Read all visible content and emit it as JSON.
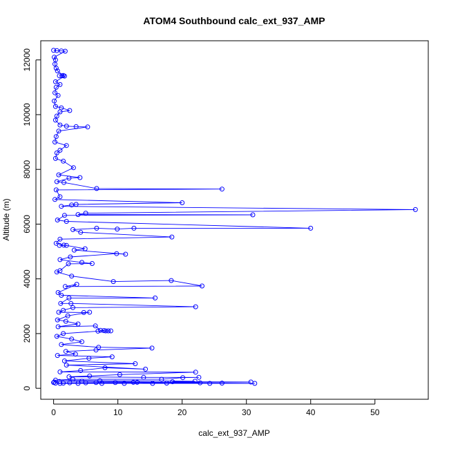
{
  "chart_data": {
    "type": "line",
    "title": "ATOM4 Southbound calc_ext_937_AMP",
    "xlabel": "calc_ext_937_AMP",
    "ylabel": "Altitude (m)",
    "xlim": [
      -2,
      58.3
    ],
    "ylim": [
      -400,
      12700
    ],
    "x_ticks": [
      0,
      10,
      20,
      30,
      40,
      50
    ],
    "y_ticks": [
      0,
      2000,
      4000,
      6000,
      8000,
      10000,
      12000
    ],
    "x_tick_labels": [
      "0",
      "10",
      "20",
      "30",
      "40",
      "50"
    ],
    "y_tick_labels": [
      "0",
      "2000",
      "4000",
      "6000",
      "8000",
      "10000",
      "12000"
    ],
    "grid": false,
    "legend": "none",
    "series_color": "#0000ff",
    "marker": "open-circle",
    "series": [
      {
        "points": [
          [
            0.0,
            12350
          ],
          [
            0.5,
            12340
          ],
          [
            1.2,
            12330
          ],
          [
            1.8,
            12320
          ],
          [
            0.1,
            12100
          ],
          [
            0.3,
            12000
          ],
          [
            0.2,
            11850
          ],
          [
            0.4,
            11700
          ],
          [
            0.6,
            11600
          ],
          [
            1.5,
            11430
          ],
          [
            0.9,
            11420
          ],
          [
            1.3,
            11420
          ],
          [
            1.7,
            11410
          ],
          [
            0.3,
            11200
          ],
          [
            1.0,
            11100
          ],
          [
            0.4,
            11000
          ],
          [
            0.2,
            10800
          ],
          [
            0.7,
            10700
          ],
          [
            0.1,
            10500
          ],
          [
            0.3,
            10300
          ],
          [
            1.2,
            10250
          ],
          [
            2.5,
            10150
          ],
          [
            1.0,
            10100
          ],
          [
            0.5,
            9950
          ],
          [
            0.3,
            9800
          ],
          [
            1.0,
            9620
          ],
          [
            2.0,
            9580
          ],
          [
            3.5,
            9560
          ],
          [
            5.3,
            9550
          ],
          [
            0.8,
            9400
          ],
          [
            0.4,
            9200
          ],
          [
            0.2,
            9000
          ],
          [
            2.0,
            8870
          ],
          [
            1.0,
            8700
          ],
          [
            0.5,
            8600
          ],
          [
            0.3,
            8400
          ],
          [
            1.5,
            8300
          ],
          [
            3.1,
            8060
          ],
          [
            0.8,
            7800
          ],
          [
            4.1,
            7700
          ],
          [
            2.4,
            7680
          ],
          [
            0.5,
            7550
          ],
          [
            1.6,
            7520
          ],
          [
            6.7,
            7300
          ],
          [
            26.2,
            7280
          ],
          [
            0.4,
            7250
          ],
          [
            1.0,
            7000
          ],
          [
            0.2,
            6900
          ],
          [
            20.0,
            6780
          ],
          [
            3.5,
            6720
          ],
          [
            2.8,
            6700
          ],
          [
            1.2,
            6650
          ],
          [
            56.3,
            6530
          ],
          [
            5.0,
            6400
          ],
          [
            3.8,
            6350
          ],
          [
            31.0,
            6340
          ],
          [
            1.7,
            6320
          ],
          [
            0.6,
            6150
          ],
          [
            2.0,
            6100
          ],
          [
            40.0,
            5850
          ],
          [
            12.5,
            5850
          ],
          [
            9.9,
            5820
          ],
          [
            6.7,
            5850
          ],
          [
            3.0,
            5800
          ],
          [
            4.2,
            5700
          ],
          [
            18.4,
            5530
          ],
          [
            1.0,
            5450
          ],
          [
            0.4,
            5300
          ],
          [
            1.6,
            5230
          ],
          [
            0.9,
            5220
          ],
          [
            2.0,
            5220
          ],
          [
            4.9,
            5100
          ],
          [
            3.2,
            5050
          ],
          [
            11.2,
            4900
          ],
          [
            9.8,
            4920
          ],
          [
            2.6,
            4800
          ],
          [
            1.0,
            4700
          ],
          [
            4.4,
            4600
          ],
          [
            6.0,
            4560
          ],
          [
            2.3,
            4550
          ],
          [
            1.0,
            4300
          ],
          [
            0.5,
            4250
          ],
          [
            2.8,
            4100
          ],
          [
            9.3,
            3900
          ],
          [
            18.3,
            3940
          ],
          [
            23.1,
            3740
          ],
          [
            1.8,
            3720
          ],
          [
            3.6,
            3800
          ],
          [
            0.7,
            3500
          ],
          [
            1.2,
            3400
          ],
          [
            15.8,
            3300
          ],
          [
            2.4,
            3300
          ],
          [
            1.1,
            3100
          ],
          [
            2.7,
            3100
          ],
          [
            22.1,
            2980
          ],
          [
            3.0,
            2950
          ],
          [
            1.5,
            2850
          ],
          [
            0.8,
            2780
          ],
          [
            4.7,
            2770
          ],
          [
            5.6,
            2780
          ],
          [
            2.2,
            2650
          ],
          [
            0.6,
            2500
          ],
          [
            1.9,
            2450
          ],
          [
            3.8,
            2350
          ],
          [
            0.7,
            2250
          ],
          [
            6.5,
            2280
          ],
          [
            7.3,
            2120
          ],
          [
            7.8,
            2110
          ],
          [
            8.1,
            2100
          ],
          [
            8.5,
            2100
          ],
          [
            8.9,
            2100
          ],
          [
            6.9,
            2090
          ],
          [
            1.5,
            2000
          ],
          [
            0.5,
            1900
          ],
          [
            2.8,
            1800
          ],
          [
            4.4,
            1700
          ],
          [
            1.2,
            1600
          ],
          [
            7.0,
            1500
          ],
          [
            15.3,
            1470
          ],
          [
            6.6,
            1400
          ],
          [
            1.9,
            1350
          ],
          [
            3.4,
            1250
          ],
          [
            0.6,
            1200
          ],
          [
            9.1,
            1150
          ],
          [
            5.5,
            1100
          ],
          [
            1.7,
            1000
          ],
          [
            12.7,
            900
          ],
          [
            2.0,
            850
          ],
          [
            14.3,
            700
          ],
          [
            8.0,
            750
          ],
          [
            4.2,
            650
          ],
          [
            1.0,
            600
          ],
          [
            22.1,
            590
          ],
          [
            10.3,
            500
          ],
          [
            5.6,
            450
          ],
          [
            2.4,
            420
          ],
          [
            14.0,
            400
          ],
          [
            22.6,
            400
          ],
          [
            20.1,
            390
          ],
          [
            16.8,
            330
          ],
          [
            3.0,
            330
          ],
          [
            0.3,
            300
          ],
          [
            7.2,
            280
          ],
          [
            22.0,
            260
          ],
          [
            18.5,
            240
          ],
          [
            30.7,
            230
          ],
          [
            12.4,
            220
          ],
          [
            9.6,
            210
          ],
          [
            5.0,
            200
          ],
          [
            1.5,
            190
          ],
          [
            26.2,
            190
          ],
          [
            31.3,
            180
          ],
          [
            24.3,
            180
          ],
          [
            15.4,
            180
          ],
          [
            11.0,
            180
          ],
          [
            7.5,
            180
          ],
          [
            3.8,
            180
          ],
          [
            1.0,
            180
          ],
          [
            0.3,
            190
          ],
          [
            2.5,
            200
          ],
          [
            6.6,
            210
          ],
          [
            13.0,
            220
          ],
          [
            17.6,
            190
          ],
          [
            22.8,
            200
          ],
          [
            4.4,
            260
          ],
          [
            0.9,
            250
          ],
          [
            0.1,
            230
          ],
          [
            0.0,
            210
          ]
        ]
      }
    ]
  }
}
